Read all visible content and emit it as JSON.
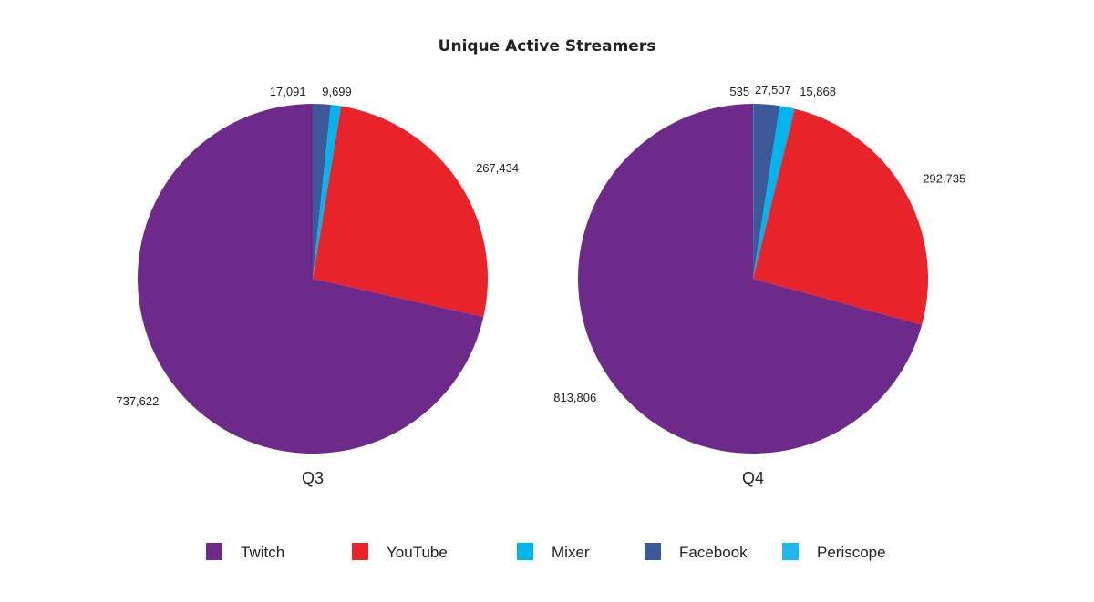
{
  "chart_data": [
    {
      "type": "pie",
      "title": "Unique Active Streamers",
      "subtitle": "Q3",
      "slices": [
        {
          "label": "Facebook",
          "value": 17091,
          "display": "17,091",
          "color": "#3C5A9A"
        },
        {
          "label": "Mixer",
          "value": 9699,
          "display": "9,699",
          "color": "#00B5EC"
        },
        {
          "label": "YouTube",
          "value": 267434,
          "display": "267,434",
          "color": "#E8242A"
        },
        {
          "label": "Twitch",
          "value": 737622,
          "display": "737,622",
          "color": "#6D2A8A"
        }
      ]
    },
    {
      "type": "pie",
      "subtitle": "Q4",
      "slices": [
        {
          "label": "Periscope",
          "value": 535,
          "display": "535",
          "color": "#1EB8EE"
        },
        {
          "label": "Facebook",
          "value": 27507,
          "display": "27,507",
          "color": "#3C5A9A"
        },
        {
          "label": "Mixer",
          "value": 15868,
          "display": "15,868",
          "color": "#00B5EC"
        },
        {
          "label": "YouTube",
          "value": 292735,
          "display": "292,735",
          "color": "#E8242A"
        },
        {
          "label": "Twitch",
          "value": 813806,
          "display": "813,806",
          "color": "#6D2A8A"
        }
      ]
    }
  ],
  "title": "Unique Active Streamers",
  "legend": {
    "placement": "bottom",
    "items": [
      {
        "label": "Twitch",
        "color": "#6D2A8A"
      },
      {
        "label": "YouTube",
        "color": "#E8242A"
      },
      {
        "label": "Mixer",
        "color": "#00B5EC"
      },
      {
        "label": "Facebook",
        "color": "#3C5A9A"
      },
      {
        "label": "Periscope",
        "color": "#1EB8EE"
      }
    ]
  }
}
